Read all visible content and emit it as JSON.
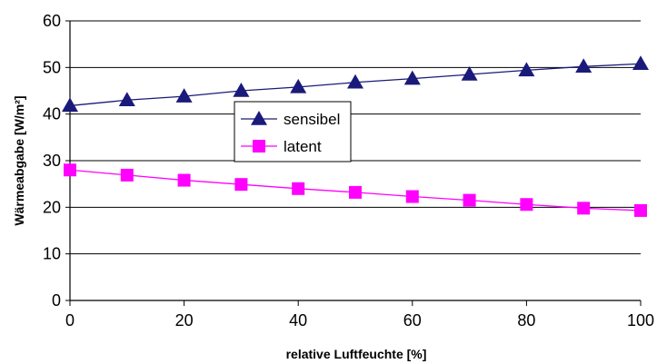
{
  "chart_data": {
    "type": "line",
    "xlabel": "relative Luftfeuchte [%]",
    "ylabel": "Wärmeabgabe [W/m²]",
    "xlim": [
      0,
      100
    ],
    "ylim": [
      0,
      60
    ],
    "xticks": [
      0,
      20,
      40,
      60,
      80,
      100
    ],
    "yticks": [
      0,
      10,
      20,
      30,
      40,
      50,
      60
    ],
    "grid": "horizontal",
    "legend_position": "center",
    "x": [
      0,
      10,
      20,
      30,
      40,
      50,
      60,
      70,
      80,
      90,
      100
    ],
    "series": [
      {
        "name": "sensibel",
        "marker": "triangle",
        "color": "#1a1a7a",
        "values": [
          41.8,
          43.0,
          43.8,
          45.0,
          45.8,
          46.8,
          47.6,
          48.5,
          49.4,
          50.2,
          50.8
        ]
      },
      {
        "name": "latent",
        "marker": "square",
        "color": "#ff00ff",
        "values": [
          28.0,
          26.9,
          25.8,
          24.9,
          24.0,
          23.2,
          22.3,
          21.5,
          20.6,
          19.8,
          19.3
        ]
      }
    ]
  }
}
